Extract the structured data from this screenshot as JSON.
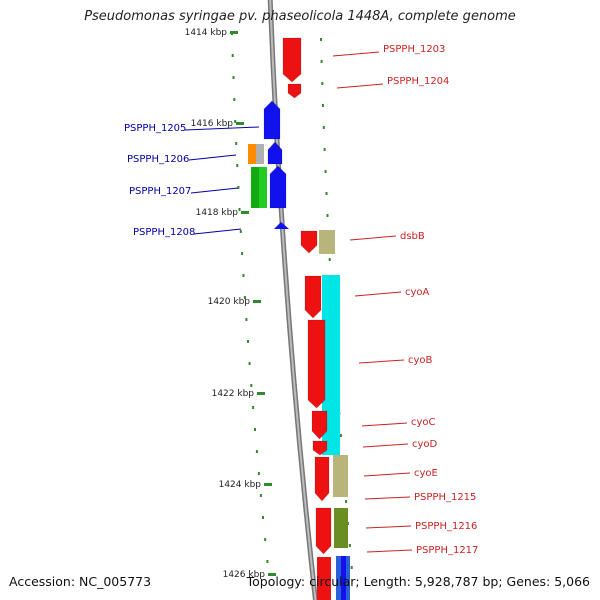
{
  "title": "Pseudomonas syringae pv. phaseolicola 1448A, complete genome",
  "footer": {
    "accession": "Accession: NC_005773",
    "summary": "Topology: circular; Length: 5,928,787 bp; Genes: 5,066"
  },
  "colors": {
    "backbone": "#8c8c8c",
    "tick": "#2e8b2e",
    "forward_label": "#cc0000",
    "reverse_label": "#0000aa",
    "gene_label": "#cc2222"
  },
  "axis_ticks": [
    "1414 kbp",
    "1416 kbp",
    "1418 kbp",
    "1420 kbp",
    "1422 kbp",
    "1424 kbp",
    "1426 kbp"
  ],
  "genes": [
    {
      "label": "PSPPH_1203",
      "strand": "+",
      "color": "#ee1111"
    },
    {
      "label": "PSPPH_1204",
      "strand": "+",
      "color": "#ee1111"
    },
    {
      "label": "PSPPH_1205",
      "strand": "-",
      "color": "#1111ee"
    },
    {
      "label": "PSPPH_1206",
      "strand": "-",
      "color": "#1111ee"
    },
    {
      "label": "PSPPH_1207",
      "strand": "-",
      "color": "#1111ee"
    },
    {
      "label": "PSPPH_1208",
      "strand": "-",
      "color": "#1111ee"
    },
    {
      "label": "dsbB",
      "strand": "+",
      "color": "#ee1111"
    },
    {
      "label": "cyoA",
      "strand": "+",
      "color": "#ee1111"
    },
    {
      "label": "cyoB",
      "strand": "+",
      "color": "#ee1111"
    },
    {
      "label": "cyoC",
      "strand": "+",
      "color": "#ee1111"
    },
    {
      "label": "cyoD",
      "strand": "+",
      "color": "#ee1111"
    },
    {
      "label": "cyoE",
      "strand": "+",
      "color": "#ee1111"
    },
    {
      "label": "PSPPH_1215",
      "strand": "+",
      "color": "#ee1111"
    },
    {
      "label": "PSPPH_1216",
      "strand": "+",
      "color": "#ee1111"
    },
    {
      "label": "PSPPH_1217",
      "strand": "+",
      "color": "#ee1111"
    }
  ]
}
